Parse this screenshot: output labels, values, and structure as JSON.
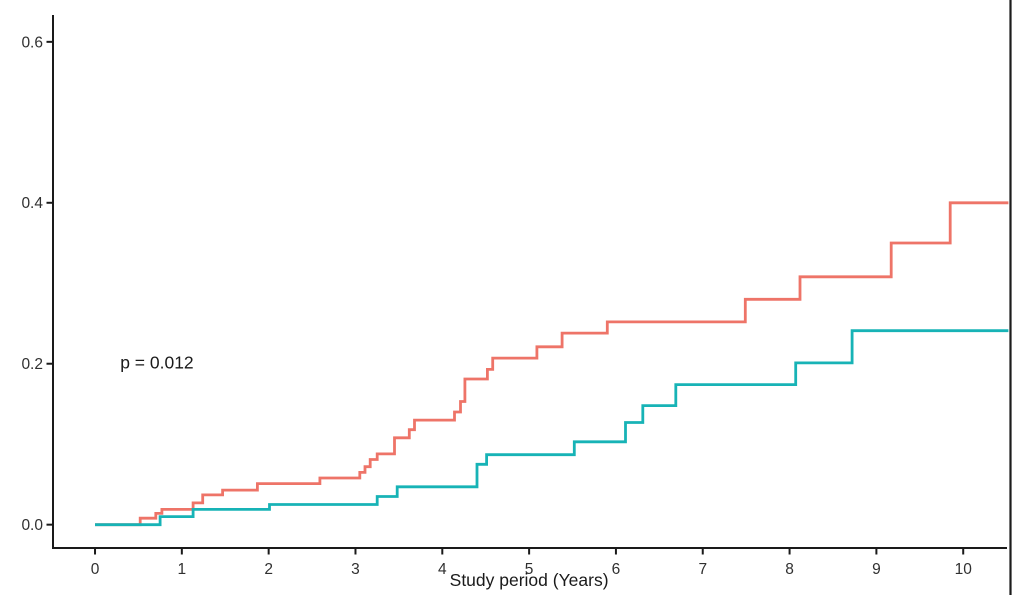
{
  "figure": {
    "background": "#ffffff",
    "right_border_color": "#1c1c1c"
  },
  "chart_data": {
    "type": "line",
    "subtype": "step-cumulative-incidence",
    "title": "",
    "xlabel": "Study period (Years)",
    "ylabel": "",
    "grid": false,
    "legend": "none",
    "xlim": [
      -0.484,
      10.585
    ],
    "ylim": [
      -0.029,
      0.652
    ],
    "x_ticks": [
      0,
      1,
      2,
      3,
      4,
      5,
      6,
      7,
      8,
      9,
      10
    ],
    "x_tick_labels": [
      "0",
      "1",
      "2",
      "3",
      "4",
      "5",
      "6",
      "7",
      "8",
      "9",
      "10"
    ],
    "y_ticks": [
      0.0,
      0.2,
      0.4,
      0.6
    ],
    "y_tick_labels": [
      "0.0",
      "0.2",
      "0.4",
      "0.6"
    ],
    "x_end": 10.52,
    "axis_color": "#1a1a1a",
    "annotations": [
      {
        "text": "p = 0.012",
        "x": 0.29,
        "y": 0.194,
        "anchor": "start"
      }
    ],
    "series": [
      {
        "name": "red-series",
        "color": "#ee7468",
        "points": [
          [
            0,
            0
          ],
          [
            0.52,
            0.008
          ],
          [
            0.7,
            0.014
          ],
          [
            0.77,
            0.019
          ],
          [
            1.13,
            0.027
          ],
          [
            1.24,
            0.037
          ],
          [
            1.47,
            0.043
          ],
          [
            1.87,
            0.051
          ],
          [
            2.59,
            0.058
          ],
          [
            3.05,
            0.065
          ],
          [
            3.11,
            0.072
          ],
          [
            3.17,
            0.081
          ],
          [
            3.25,
            0.088
          ],
          [
            3.45,
            0.108
          ],
          [
            3.62,
            0.118
          ],
          [
            3.68,
            0.13
          ],
          [
            4.14,
            0.14
          ],
          [
            4.21,
            0.153
          ],
          [
            4.26,
            0.181
          ],
          [
            4.52,
            0.193
          ],
          [
            4.58,
            0.207
          ],
          [
            5.09,
            0.221
          ],
          [
            5.38,
            0.238
          ],
          [
            5.9,
            0.252
          ],
          [
            7.49,
            0.28
          ],
          [
            8.12,
            0.308
          ],
          [
            9.17,
            0.35
          ],
          [
            9.85,
            0.4
          ]
        ]
      },
      {
        "name": "teal-series",
        "color": "#17b3b6",
        "points": [
          [
            0,
            0
          ],
          [
            0.75,
            0.01
          ],
          [
            1.13,
            0.019
          ],
          [
            2.01,
            0.025
          ],
          [
            3.25,
            0.035
          ],
          [
            3.48,
            0.047
          ],
          [
            4.4,
            0.075
          ],
          [
            4.51,
            0.087
          ],
          [
            5.52,
            0.103
          ],
          [
            6.11,
            0.127
          ],
          [
            6.31,
            0.148
          ],
          [
            6.69,
            0.174
          ],
          [
            8.07,
            0.201
          ],
          [
            8.72,
            0.241
          ]
        ]
      }
    ]
  }
}
